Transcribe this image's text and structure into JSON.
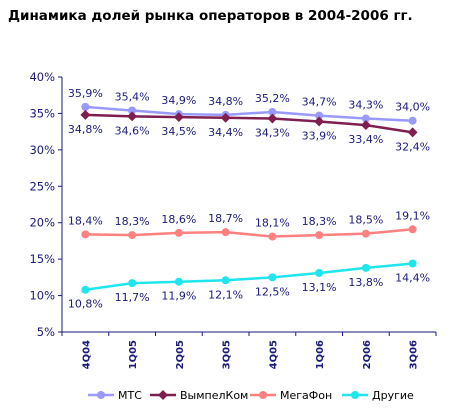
{
  "title": "Динамика долей рынка операторов в 2004-2006 гг.",
  "chart_data": {
    "type": "line",
    "title": "Динамика долей рынка операторов в 2004-2006 гг.",
    "categories": [
      "4Q04",
      "1Q05",
      "2Q05",
      "3Q05",
      "4Q05",
      "1Q06",
      "2Q06",
      "3Q06"
    ],
    "ylim": [
      5,
      40
    ],
    "yticks": [
      "5%",
      "10%",
      "15%",
      "20%",
      "25%",
      "30%",
      "35%",
      "40%"
    ],
    "grid": false,
    "legend_position": "bottom",
    "series": [
      {
        "name": "МТС",
        "color": "#9999ff",
        "values": [
          35.9,
          35.4,
          34.9,
          34.8,
          35.2,
          34.7,
          34.3,
          34.0
        ],
        "labels": [
          "35,9%",
          "35,4%",
          "34,9%",
          "34,8%",
          "35,2%",
          "34,7%",
          "34,3%",
          "34,0%"
        ],
        "label_pos": "above"
      },
      {
        "name": "ВымпелКом",
        "color": "#7f1f4f",
        "values": [
          34.8,
          34.6,
          34.5,
          34.4,
          34.3,
          33.9,
          33.4,
          32.4
        ],
        "labels": [
          "34,8%",
          "34,6%",
          "34,5%",
          "34,4%",
          "34,3%",
          "33,9%",
          "33,4%",
          "32,4%"
        ],
        "label_pos": "below"
      },
      {
        "name": "МегаФон",
        "color": "#ff8080",
        "values": [
          18.4,
          18.3,
          18.6,
          18.7,
          18.1,
          18.3,
          18.5,
          19.1
        ],
        "labels": [
          "18,4%",
          "18,3%",
          "18,6%",
          "18,7%",
          "18,1%",
          "18,3%",
          "18,5%",
          "19,1%"
        ],
        "label_pos": "above"
      },
      {
        "name": "Другие",
        "color": "#1ee5ee",
        "values": [
          10.8,
          11.7,
          11.9,
          12.1,
          12.5,
          13.1,
          13.8,
          14.4
        ],
        "labels": [
          "10,8%",
          "11,7%",
          "11,9%",
          "12,1%",
          "12,5%",
          "13,1%",
          "13,8%",
          "14,4%"
        ],
        "label_pos": "below"
      }
    ]
  }
}
